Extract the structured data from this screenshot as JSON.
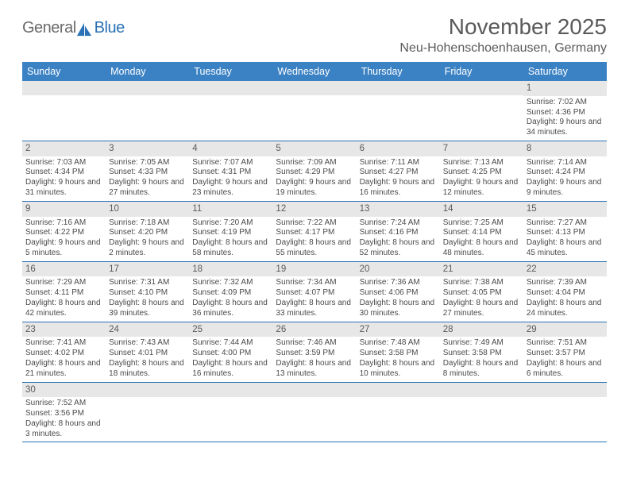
{
  "brand": {
    "text1": "General",
    "text2": "Blue",
    "sail_color": "#2a72b5",
    "text_color": "#6a6a6a"
  },
  "header": {
    "month_title": "November 2025",
    "location": "Neu-Hohenschoenhausen, Germany"
  },
  "colors": {
    "header_bg": "#3b82c4",
    "header_text": "#ffffff",
    "daynum_bg": "#e7e7e7",
    "rule": "#2a72b5",
    "body_text": "#4a4a4a"
  },
  "weekdays": [
    "Sunday",
    "Monday",
    "Tuesday",
    "Wednesday",
    "Thursday",
    "Friday",
    "Saturday"
  ],
  "weeks": [
    [
      {
        "n": "",
        "sr": "",
        "ss": "",
        "dl": ""
      },
      {
        "n": "",
        "sr": "",
        "ss": "",
        "dl": ""
      },
      {
        "n": "",
        "sr": "",
        "ss": "",
        "dl": ""
      },
      {
        "n": "",
        "sr": "",
        "ss": "",
        "dl": ""
      },
      {
        "n": "",
        "sr": "",
        "ss": "",
        "dl": ""
      },
      {
        "n": "",
        "sr": "",
        "ss": "",
        "dl": ""
      },
      {
        "n": "1",
        "sr": "Sunrise: 7:02 AM",
        "ss": "Sunset: 4:36 PM",
        "dl": "Daylight: 9 hours and 34 minutes."
      }
    ],
    [
      {
        "n": "2",
        "sr": "Sunrise: 7:03 AM",
        "ss": "Sunset: 4:34 PM",
        "dl": "Daylight: 9 hours and 31 minutes."
      },
      {
        "n": "3",
        "sr": "Sunrise: 7:05 AM",
        "ss": "Sunset: 4:33 PM",
        "dl": "Daylight: 9 hours and 27 minutes."
      },
      {
        "n": "4",
        "sr": "Sunrise: 7:07 AM",
        "ss": "Sunset: 4:31 PM",
        "dl": "Daylight: 9 hours and 23 minutes."
      },
      {
        "n": "5",
        "sr": "Sunrise: 7:09 AM",
        "ss": "Sunset: 4:29 PM",
        "dl": "Daylight: 9 hours and 19 minutes."
      },
      {
        "n": "6",
        "sr": "Sunrise: 7:11 AM",
        "ss": "Sunset: 4:27 PM",
        "dl": "Daylight: 9 hours and 16 minutes."
      },
      {
        "n": "7",
        "sr": "Sunrise: 7:13 AM",
        "ss": "Sunset: 4:25 PM",
        "dl": "Daylight: 9 hours and 12 minutes."
      },
      {
        "n": "8",
        "sr": "Sunrise: 7:14 AM",
        "ss": "Sunset: 4:24 PM",
        "dl": "Daylight: 9 hours and 9 minutes."
      }
    ],
    [
      {
        "n": "9",
        "sr": "Sunrise: 7:16 AM",
        "ss": "Sunset: 4:22 PM",
        "dl": "Daylight: 9 hours and 5 minutes."
      },
      {
        "n": "10",
        "sr": "Sunrise: 7:18 AM",
        "ss": "Sunset: 4:20 PM",
        "dl": "Daylight: 9 hours and 2 minutes."
      },
      {
        "n": "11",
        "sr": "Sunrise: 7:20 AM",
        "ss": "Sunset: 4:19 PM",
        "dl": "Daylight: 8 hours and 58 minutes."
      },
      {
        "n": "12",
        "sr": "Sunrise: 7:22 AM",
        "ss": "Sunset: 4:17 PM",
        "dl": "Daylight: 8 hours and 55 minutes."
      },
      {
        "n": "13",
        "sr": "Sunrise: 7:24 AM",
        "ss": "Sunset: 4:16 PM",
        "dl": "Daylight: 8 hours and 52 minutes."
      },
      {
        "n": "14",
        "sr": "Sunrise: 7:25 AM",
        "ss": "Sunset: 4:14 PM",
        "dl": "Daylight: 8 hours and 48 minutes."
      },
      {
        "n": "15",
        "sr": "Sunrise: 7:27 AM",
        "ss": "Sunset: 4:13 PM",
        "dl": "Daylight: 8 hours and 45 minutes."
      }
    ],
    [
      {
        "n": "16",
        "sr": "Sunrise: 7:29 AM",
        "ss": "Sunset: 4:11 PM",
        "dl": "Daylight: 8 hours and 42 minutes."
      },
      {
        "n": "17",
        "sr": "Sunrise: 7:31 AM",
        "ss": "Sunset: 4:10 PM",
        "dl": "Daylight: 8 hours and 39 minutes."
      },
      {
        "n": "18",
        "sr": "Sunrise: 7:32 AM",
        "ss": "Sunset: 4:09 PM",
        "dl": "Daylight: 8 hours and 36 minutes."
      },
      {
        "n": "19",
        "sr": "Sunrise: 7:34 AM",
        "ss": "Sunset: 4:07 PM",
        "dl": "Daylight: 8 hours and 33 minutes."
      },
      {
        "n": "20",
        "sr": "Sunrise: 7:36 AM",
        "ss": "Sunset: 4:06 PM",
        "dl": "Daylight: 8 hours and 30 minutes."
      },
      {
        "n": "21",
        "sr": "Sunrise: 7:38 AM",
        "ss": "Sunset: 4:05 PM",
        "dl": "Daylight: 8 hours and 27 minutes."
      },
      {
        "n": "22",
        "sr": "Sunrise: 7:39 AM",
        "ss": "Sunset: 4:04 PM",
        "dl": "Daylight: 8 hours and 24 minutes."
      }
    ],
    [
      {
        "n": "23",
        "sr": "Sunrise: 7:41 AM",
        "ss": "Sunset: 4:02 PM",
        "dl": "Daylight: 8 hours and 21 minutes."
      },
      {
        "n": "24",
        "sr": "Sunrise: 7:43 AM",
        "ss": "Sunset: 4:01 PM",
        "dl": "Daylight: 8 hours and 18 minutes."
      },
      {
        "n": "25",
        "sr": "Sunrise: 7:44 AM",
        "ss": "Sunset: 4:00 PM",
        "dl": "Daylight: 8 hours and 16 minutes."
      },
      {
        "n": "26",
        "sr": "Sunrise: 7:46 AM",
        "ss": "Sunset: 3:59 PM",
        "dl": "Daylight: 8 hours and 13 minutes."
      },
      {
        "n": "27",
        "sr": "Sunrise: 7:48 AM",
        "ss": "Sunset: 3:58 PM",
        "dl": "Daylight: 8 hours and 10 minutes."
      },
      {
        "n": "28",
        "sr": "Sunrise: 7:49 AM",
        "ss": "Sunset: 3:58 PM",
        "dl": "Daylight: 8 hours and 8 minutes."
      },
      {
        "n": "29",
        "sr": "Sunrise: 7:51 AM",
        "ss": "Sunset: 3:57 PM",
        "dl": "Daylight: 8 hours and 6 minutes."
      }
    ],
    [
      {
        "n": "30",
        "sr": "Sunrise: 7:52 AM",
        "ss": "Sunset: 3:56 PM",
        "dl": "Daylight: 8 hours and 3 minutes."
      },
      {
        "n": "",
        "sr": "",
        "ss": "",
        "dl": ""
      },
      {
        "n": "",
        "sr": "",
        "ss": "",
        "dl": ""
      },
      {
        "n": "",
        "sr": "",
        "ss": "",
        "dl": ""
      },
      {
        "n": "",
        "sr": "",
        "ss": "",
        "dl": ""
      },
      {
        "n": "",
        "sr": "",
        "ss": "",
        "dl": ""
      },
      {
        "n": "",
        "sr": "",
        "ss": "",
        "dl": ""
      }
    ]
  ]
}
